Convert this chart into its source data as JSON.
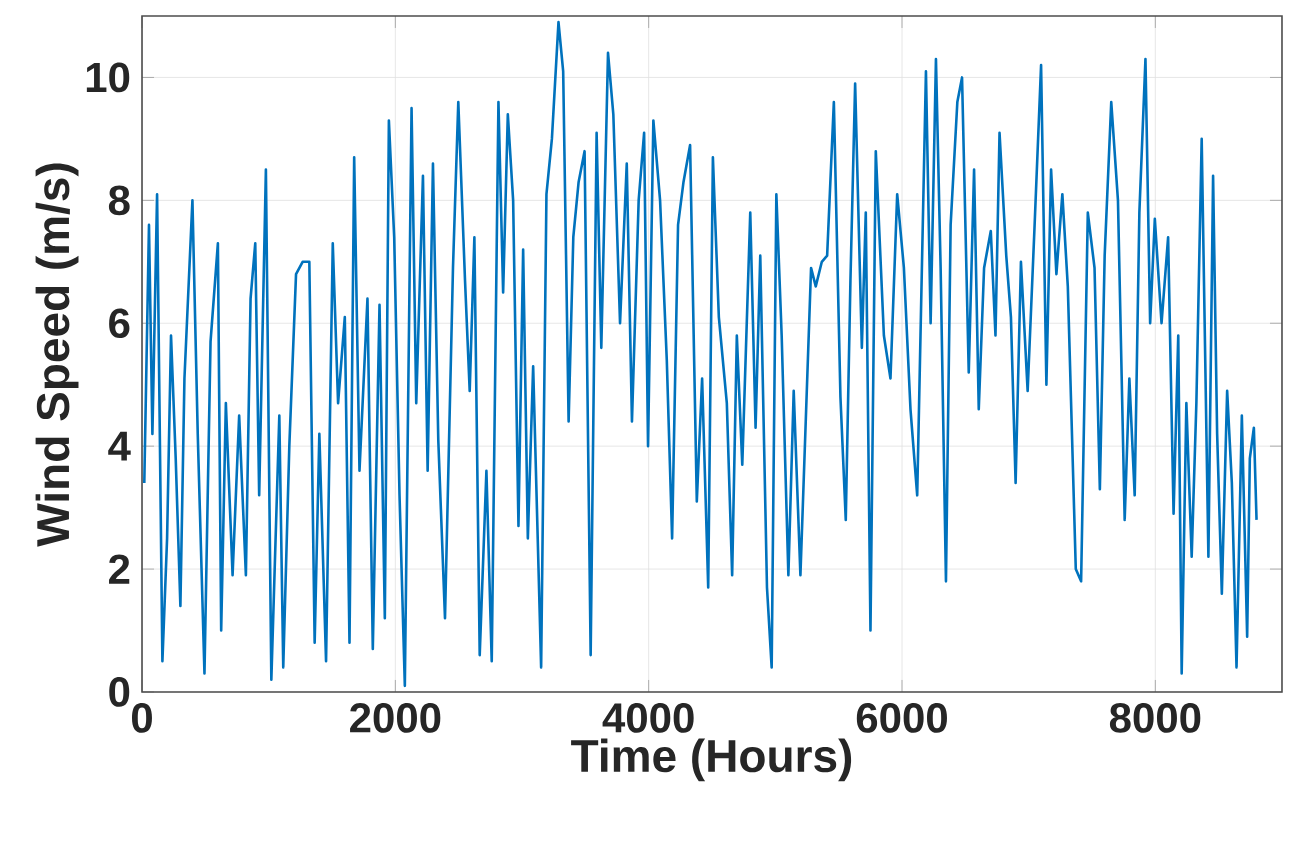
{
  "chart_data": {
    "type": "line",
    "xlabel": "Time (Hours)",
    "ylabel": "Wind Speed (m/s)",
    "color": "#0072bd",
    "grid": true,
    "xlim": [
      0,
      9000
    ],
    "ylim": [
      0,
      11
    ],
    "xticks": [
      0,
      2000,
      4000,
      6000,
      8000
    ],
    "yticks": [
      0,
      2,
      4,
      6,
      8,
      10
    ],
    "x": [
      18,
      55,
      82,
      119,
      161,
      198,
      229,
      266,
      303,
      335,
      398,
      440,
      493,
      541,
      599,
      625,
      662,
      715,
      767,
      820,
      857,
      894,
      925,
      978,
      1021,
      1084,
      1115,
      1163,
      1216,
      1268,
      1321,
      1363,
      1400,
      1453,
      1506,
      1548,
      1601,
      1638,
      1675,
      1717,
      1780,
      1822,
      1875,
      1917,
      1949,
      1991,
      2033,
      2075,
      2128,
      2165,
      2218,
      2255,
      2297,
      2339,
      2392,
      2455,
      2497,
      2550,
      2587,
      2624,
      2666,
      2719,
      2761,
      2814,
      2851,
      2888,
      2930,
      2972,
      3009,
      3046,
      3088,
      3151,
      3193,
      3236,
      3288,
      3325,
      3368,
      3405,
      3447,
      3494,
      3542,
      3589,
      3626,
      3679,
      3721,
      3774,
      3827,
      3868,
      3921,
      3964,
      3995,
      4037,
      4090,
      4143,
      4185,
      4232,
      4275,
      4327,
      4380,
      4422,
      4470,
      4507,
      4554,
      4617,
      4659,
      4696,
      4739,
      4802,
      4844,
      4881,
      4934,
      4971,
      5008,
      5050,
      5103,
      5145,
      5198,
      5240,
      5282,
      5319,
      5367,
      5409,
      5462,
      5514,
      5556,
      5593,
      5630,
      5683,
      5714,
      5751,
      5793,
      5857,
      5909,
      5962,
      6015,
      6067,
      6120,
      6146,
      6189,
      6226,
      6268,
      6305,
      6347,
      6384,
      6437,
      6474,
      6527,
      6569,
      6606,
      6648,
      6701,
      6738,
      6770,
      6823,
      6860,
      6897,
      6939,
      6992,
      7045,
      7098,
      7140,
      7177,
      7219,
      7266,
      7309,
      7372,
      7414,
      7467,
      7520,
      7562,
      7600,
      7652,
      7705,
      7758,
      7795,
      7837,
      7874,
      7922,
      7959,
      7996,
      8049,
      8101,
      8144,
      8181,
      8208,
      8245,
      8287,
      8324,
      8366,
      8419,
      8456,
      8488,
      8525,
      8567,
      8604,
      8641,
      8683,
      8725,
      8746,
      8778,
      8799
    ],
    "values": [
      3.4,
      7.6,
      4.2,
      8.1,
      0.5,
      2.5,
      5.8,
      3.8,
      1.4,
      5.1,
      8.0,
      4.2,
      0.3,
      5.7,
      7.3,
      1.0,
      4.7,
      1.9,
      4.5,
      1.9,
      6.4,
      7.3,
      3.2,
      8.5,
      0.2,
      4.5,
      0.4,
      4.0,
      6.8,
      7.0,
      7.0,
      0.8,
      4.2,
      0.5,
      7.3,
      4.7,
      6.1,
      0.8,
      8.7,
      3.6,
      6.4,
      0.7,
      6.3,
      1.2,
      9.3,
      7.4,
      3.2,
      0.1,
      9.5,
      4.7,
      8.4,
      3.6,
      8.6,
      4.1,
      1.2,
      6.9,
      9.6,
      6.7,
      4.9,
      7.4,
      0.6,
      3.6,
      0.5,
      9.6,
      6.5,
      9.4,
      8.0,
      2.7,
      7.2,
      2.5,
      5.3,
      0.4,
      8.1,
      9.0,
      10.9,
      10.1,
      4.4,
      7.4,
      8.3,
      8.8,
      0.6,
      9.1,
      5.6,
      10.4,
      9.4,
      6.0,
      8.6,
      4.4,
      8.0,
      9.1,
      4.0,
      9.3,
      8.0,
      5.4,
      2.5,
      7.6,
      8.3,
      8.9,
      3.1,
      5.1,
      1.7,
      8.7,
      6.1,
      4.7,
      1.9,
      5.8,
      3.7,
      7.8,
      4.3,
      7.1,
      1.7,
      0.4,
      8.1,
      5.8,
      1.9,
      4.9,
      1.9,
      4.4,
      6.9,
      6.6,
      7.0,
      7.1,
      9.6,
      4.8,
      2.8,
      6.7,
      9.9,
      5.6,
      7.8,
      1.0,
      8.8,
      5.8,
      5.1,
      8.1,
      6.9,
      4.6,
      3.2,
      5.8,
      10.1,
      6.0,
      10.3,
      6.9,
      1.8,
      7.6,
      9.6,
      10.0,
      5.2,
      8.5,
      4.6,
      6.9,
      7.5,
      5.8,
      9.1,
      7.1,
      6.1,
      3.4,
      7.0,
      4.9,
      7.5,
      10.2,
      5.0,
      8.5,
      6.8,
      8.1,
      6.6,
      2.0,
      1.8,
      7.8,
      6.9,
      3.3,
      7.1,
      9.6,
      8.0,
      2.8,
      5.1,
      3.2,
      7.8,
      10.3,
      6.0,
      7.7,
      6.0,
      7.4,
      2.9,
      5.8,
      0.3,
      4.7,
      2.2,
      4.7,
      9.0,
      2.2,
      8.4,
      4.2,
      1.6,
      4.9,
      3.4,
      0.4,
      4.5,
      0.9,
      3.8,
      4.3,
      2.8
    ]
  }
}
